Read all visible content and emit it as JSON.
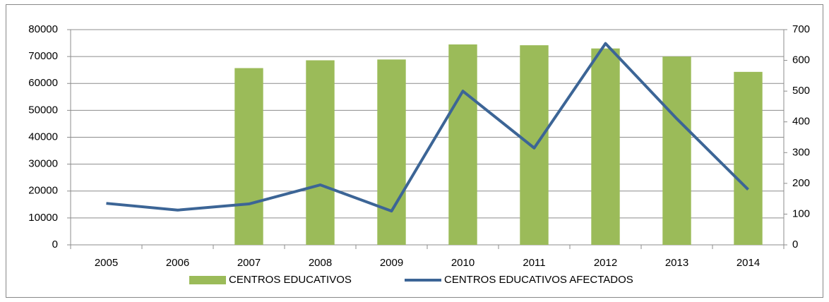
{
  "chart_data": {
    "type": "bar_line",
    "categories": [
      "2005",
      "2006",
      "2007",
      "2008",
      "2009",
      "2010",
      "2011",
      "2012",
      "2013",
      "2014"
    ],
    "series": [
      {
        "name": "CENTROS EDUCATIVOS",
        "type": "bar",
        "color": "#9bbb59",
        "values": [
          null,
          null,
          65700,
          68600,
          68900,
          74500,
          74200,
          73000,
          70000,
          64300
        ]
      },
      {
        "name": "CENTROS EDUCATIVOS AFECTADOS",
        "type": "line",
        "axis": "y2",
        "color": "#3c6596",
        "values": [
          135,
          113,
          133,
          195,
          110,
          500,
          315,
          655,
          410,
          180
        ]
      }
    ],
    "ylim": [
      0,
      80000
    ],
    "yticks": [
      0,
      10000,
      20000,
      30000,
      40000,
      50000,
      60000,
      70000,
      80000
    ],
    "y2lim": [
      0,
      700
    ],
    "y2ticks": [
      0,
      100,
      200,
      300,
      400,
      500,
      600,
      700
    ],
    "grid": true,
    "legend": "bottom"
  }
}
